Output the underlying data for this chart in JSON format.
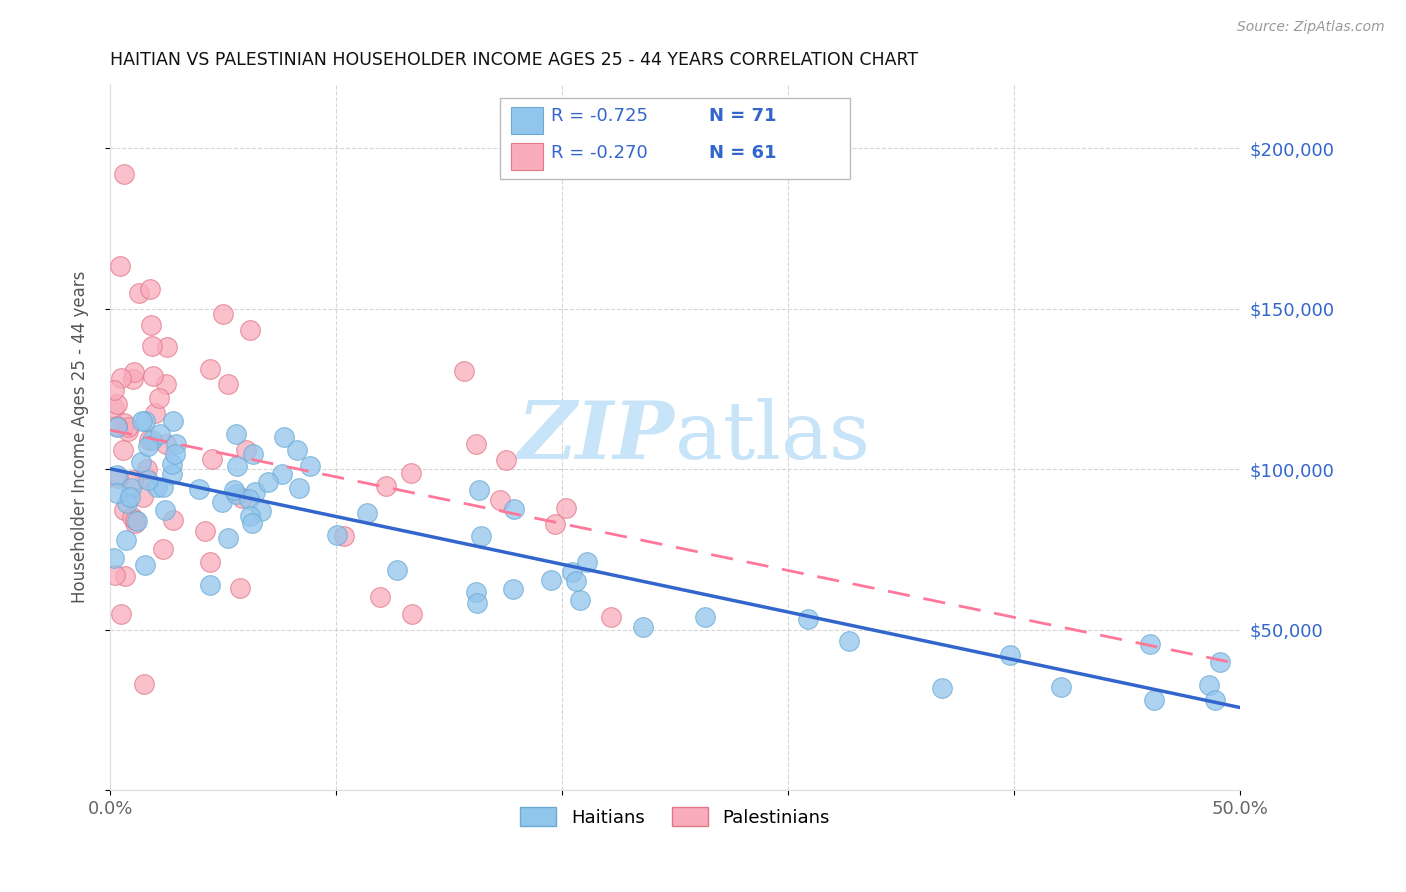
{
  "title": "HAITIAN VS PALESTINIAN HOUSEHOLDER INCOME AGES 25 - 44 YEARS CORRELATION CHART",
  "source": "Source: ZipAtlas.com",
  "ylabel": "Householder Income Ages 25 - 44 years",
  "xlim": [
    0.0,
    0.5
  ],
  "ylim": [
    0,
    220000
  ],
  "haitian_color": "#92C5EC",
  "haitian_edge": "#6AAAD4",
  "palestinian_color": "#F9ACBC",
  "palestinian_edge": "#E07888",
  "haitian_line_color": "#3366CC",
  "palestinian_line_color": "#FF7799",
  "legend_r_haitian": "R = -0.725",
  "legend_n_haitian": "N = 71",
  "legend_r_palestinian": "R = -0.270",
  "legend_n_palestinian": "N = 61",
  "watermark_color": "#C8E4F8"
}
